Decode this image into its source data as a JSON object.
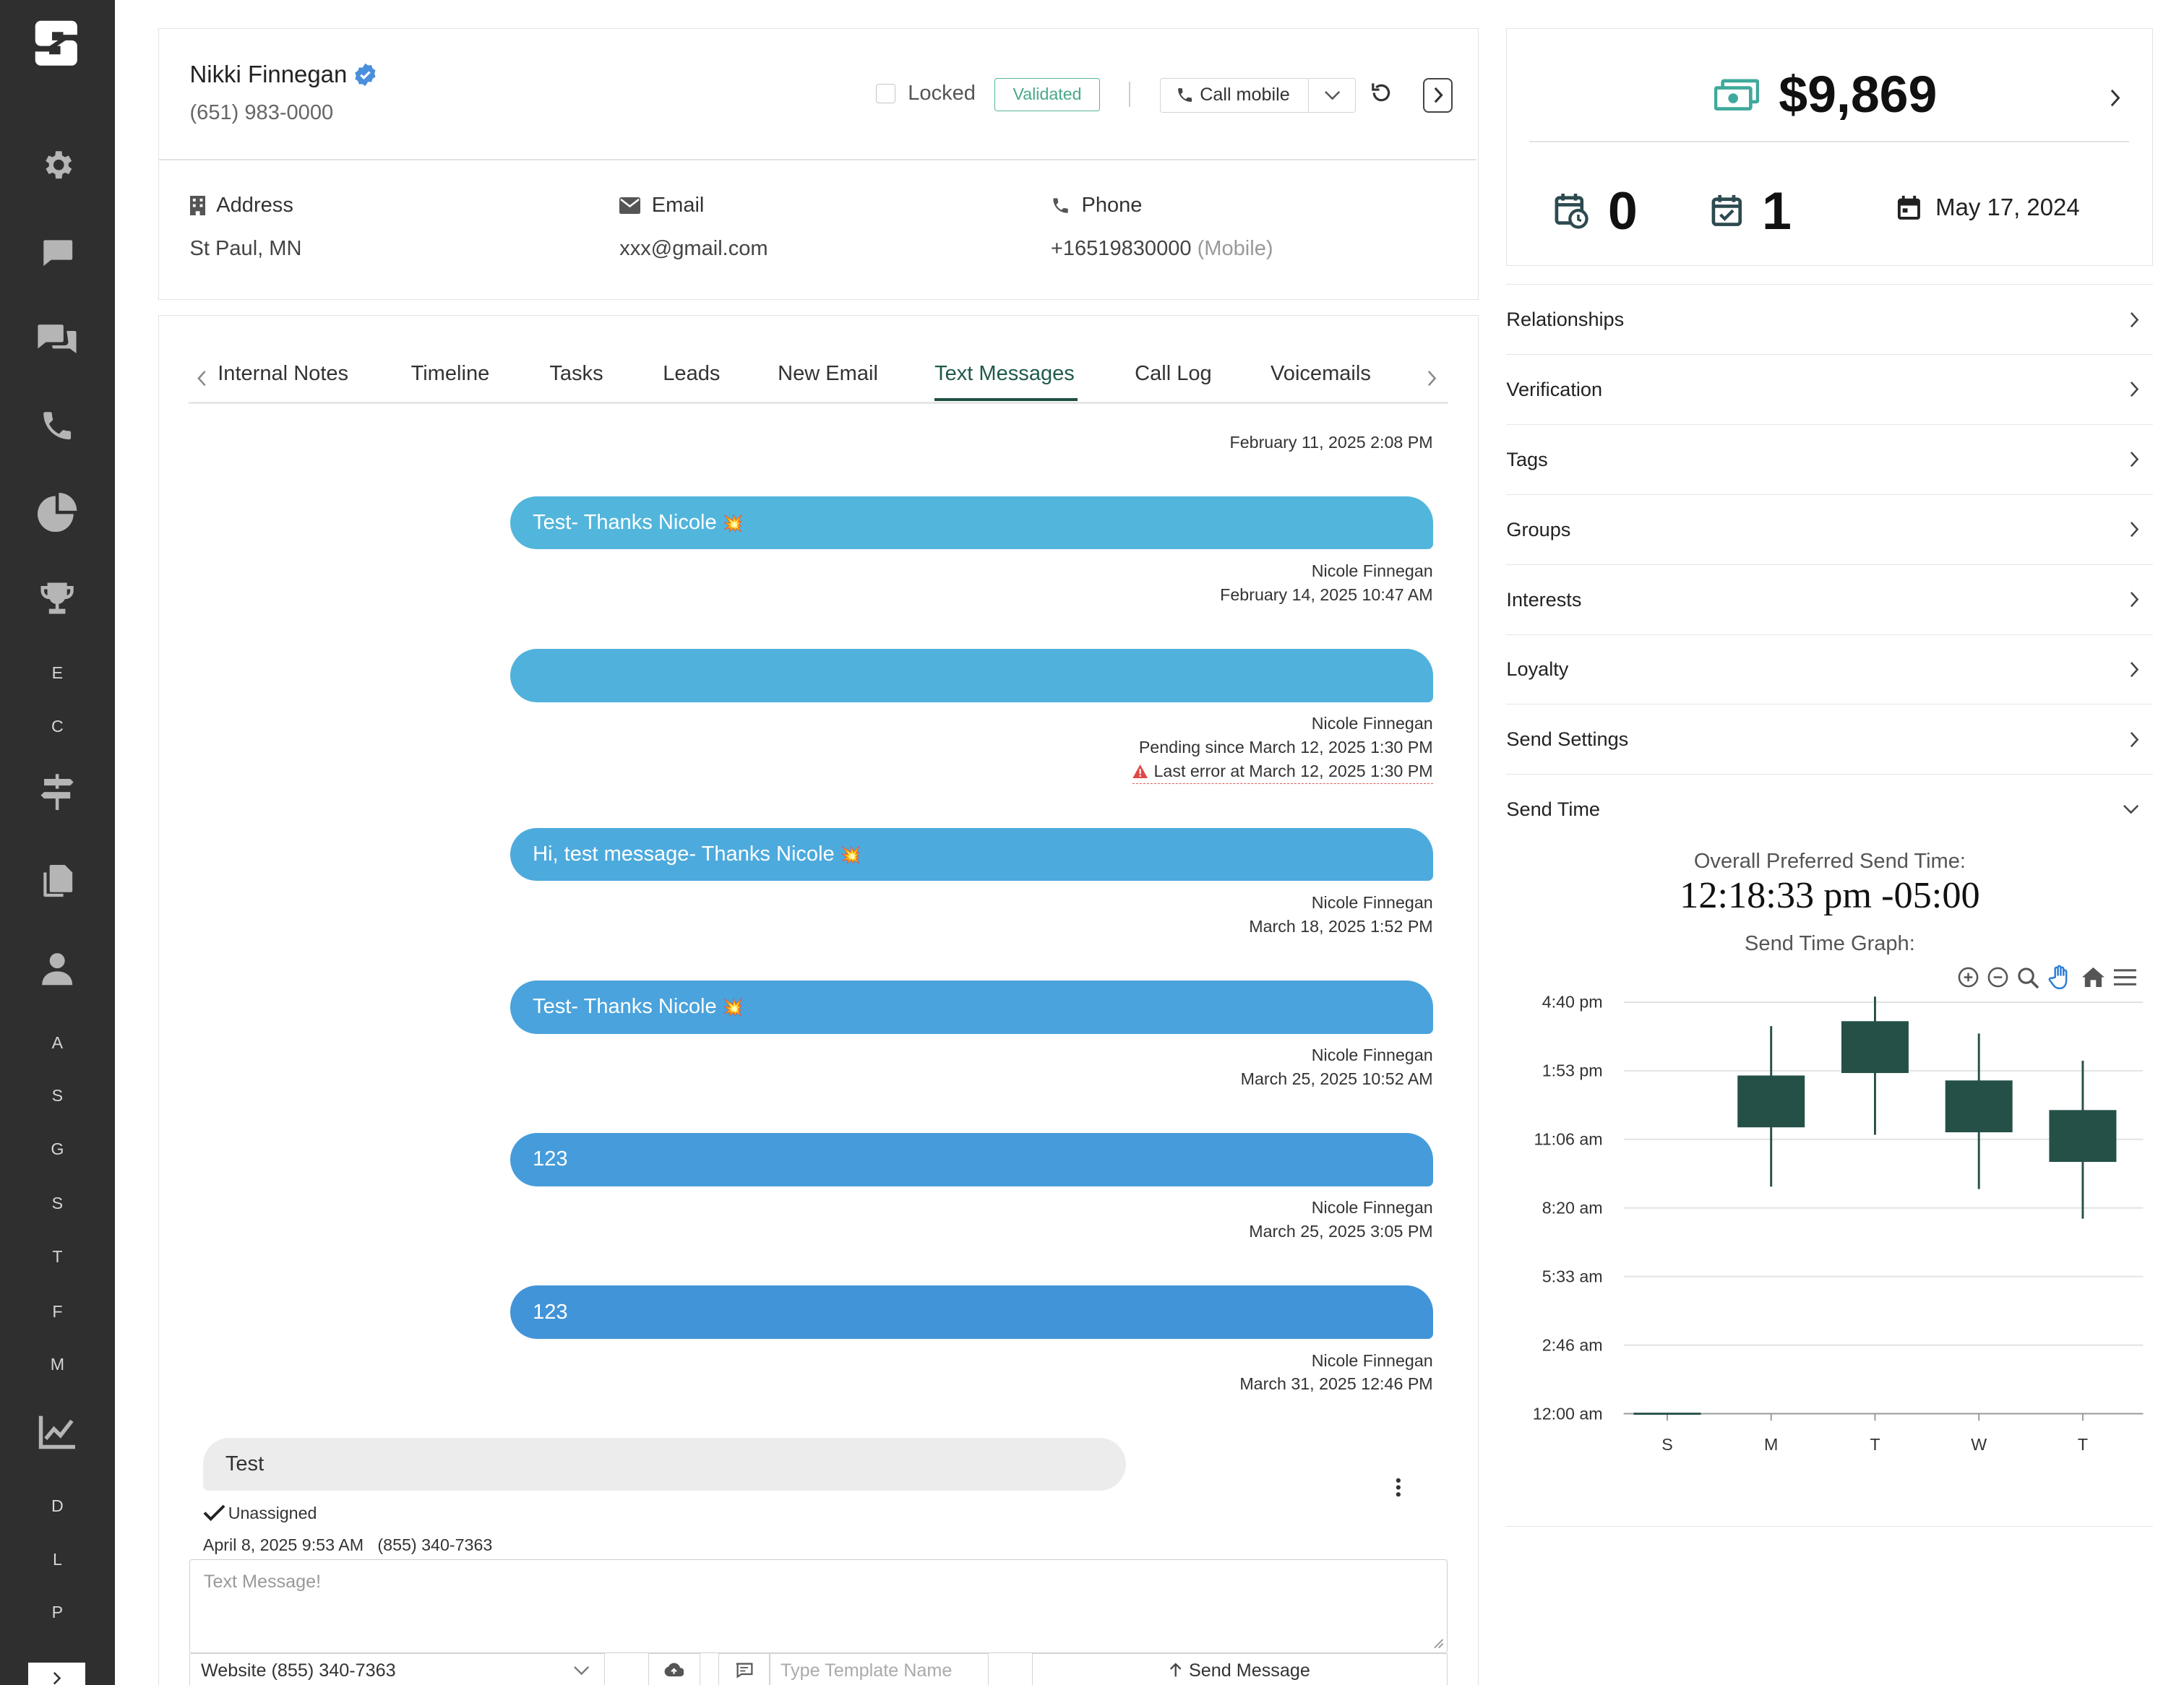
{
  "sidebar": {
    "letters_top": [
      "E",
      "C"
    ],
    "letters_mid": [
      "A",
      "S",
      "G",
      "S",
      "T",
      "F",
      "M"
    ],
    "letters_bottom": [
      "D",
      "L",
      "P"
    ]
  },
  "contact": {
    "name": "Nikki Finnegan",
    "phone": "(651) 983-0000",
    "locked_label": "Locked",
    "validated_label": "Validated",
    "call_label": "Call mobile",
    "address_label": "Address",
    "address_value": "St Paul, MN",
    "email_label": "Email",
    "email_value": "xxx@gmail.com",
    "phone_label": "Phone",
    "phone_value": "+16519830000",
    "phone_type": "(Mobile)"
  },
  "tabs": [
    "Internal Notes",
    "Timeline",
    "Tasks",
    "Leads",
    "New Email",
    "Text Messages",
    "Call Log",
    "Voicemails"
  ],
  "active_tab": "Text Messages",
  "messages": {
    "first_meta": "February 11, 2025 2:08 PM",
    "items": [
      {
        "text": "Test- Thanks Nicole",
        "emoji": "💥",
        "author": "Nicole Finnegan",
        "time": "February 14, 2025 10:47 AM",
        "color": "#52b6dc"
      },
      {
        "text": "",
        "emoji": "",
        "author": "Nicole Finnegan",
        "pending": "Pending since March 12, 2025 1:30 PM",
        "error": "Last error at March 12, 2025 1:30 PM",
        "color": "#50b1dc"
      },
      {
        "text": "Hi, test message- Thanks Nicole",
        "emoji": "💥",
        "author": "Nicole Finnegan",
        "time": "March 18, 2025 1:52 PM",
        "color": "#4daadd"
      },
      {
        "text": "Test- Thanks Nicole",
        "emoji": "💥",
        "author": "Nicole Finnegan",
        "time": "March 25, 2025 10:52 AM",
        "color": "#4aa3dc"
      },
      {
        "text": "123",
        "emoji": "",
        "author": "Nicole Finnegan",
        "time": "March 25, 2025 3:05 PM",
        "color": "#469cdb"
      },
      {
        "text": "123",
        "emoji": "",
        "author": "Nicole Finnegan",
        "time": "March 31, 2025 12:46 PM",
        "color": "#4294d8"
      }
    ],
    "incoming": {
      "text": "Test",
      "status": "Unassigned",
      "time": "April 8, 2025 9:53 AM",
      "number": "(855) 340-7363"
    }
  },
  "compose": {
    "placeholder": "Text Message!",
    "from_select": "Website (855) 340-7363",
    "template_placeholder": "Type Template Name",
    "send_label": "Send Message"
  },
  "stats": {
    "amount": "$9,869",
    "overdue_count": "0",
    "done_count": "1",
    "date": "May 17, 2024"
  },
  "accordion": [
    "Relationships",
    "Verification",
    "Tags",
    "Groups",
    "Interests",
    "Loyalty",
    "Send Settings",
    "Send Time"
  ],
  "send_time": {
    "title": "Overall Preferred Send Time:",
    "value": "12:18:33 pm -05:00",
    "graph_label": "Send Time Graph:"
  },
  "chart_data": {
    "type": "candlestick",
    "categories": [
      "S",
      "M",
      "T",
      "W",
      "T"
    ],
    "ytick_labels": [
      "12:00 am",
      "2:46 am",
      "5:33 am",
      "8:20 am",
      "11:06 am",
      "1:53 pm",
      "4:40 pm"
    ],
    "ylim_hours": [
      0,
      16.67
    ],
    "candles": [
      {
        "x": "S",
        "low": 0.0,
        "open": 0.0,
        "close": 0.0,
        "high": 0.0
      },
      {
        "x": "M",
        "low": 9.2,
        "open": 11.6,
        "close": 13.7,
        "high": 15.7
      },
      {
        "x": "T",
        "low": 11.3,
        "open": 13.8,
        "close": 15.9,
        "high": 17.6
      },
      {
        "x": "W",
        "low": 9.1,
        "open": 11.4,
        "close": 13.5,
        "high": 15.4
      },
      {
        "x": "T",
        "low": 7.9,
        "open": 10.2,
        "close": 12.3,
        "high": 14.3
      }
    ],
    "color": "#245047"
  }
}
